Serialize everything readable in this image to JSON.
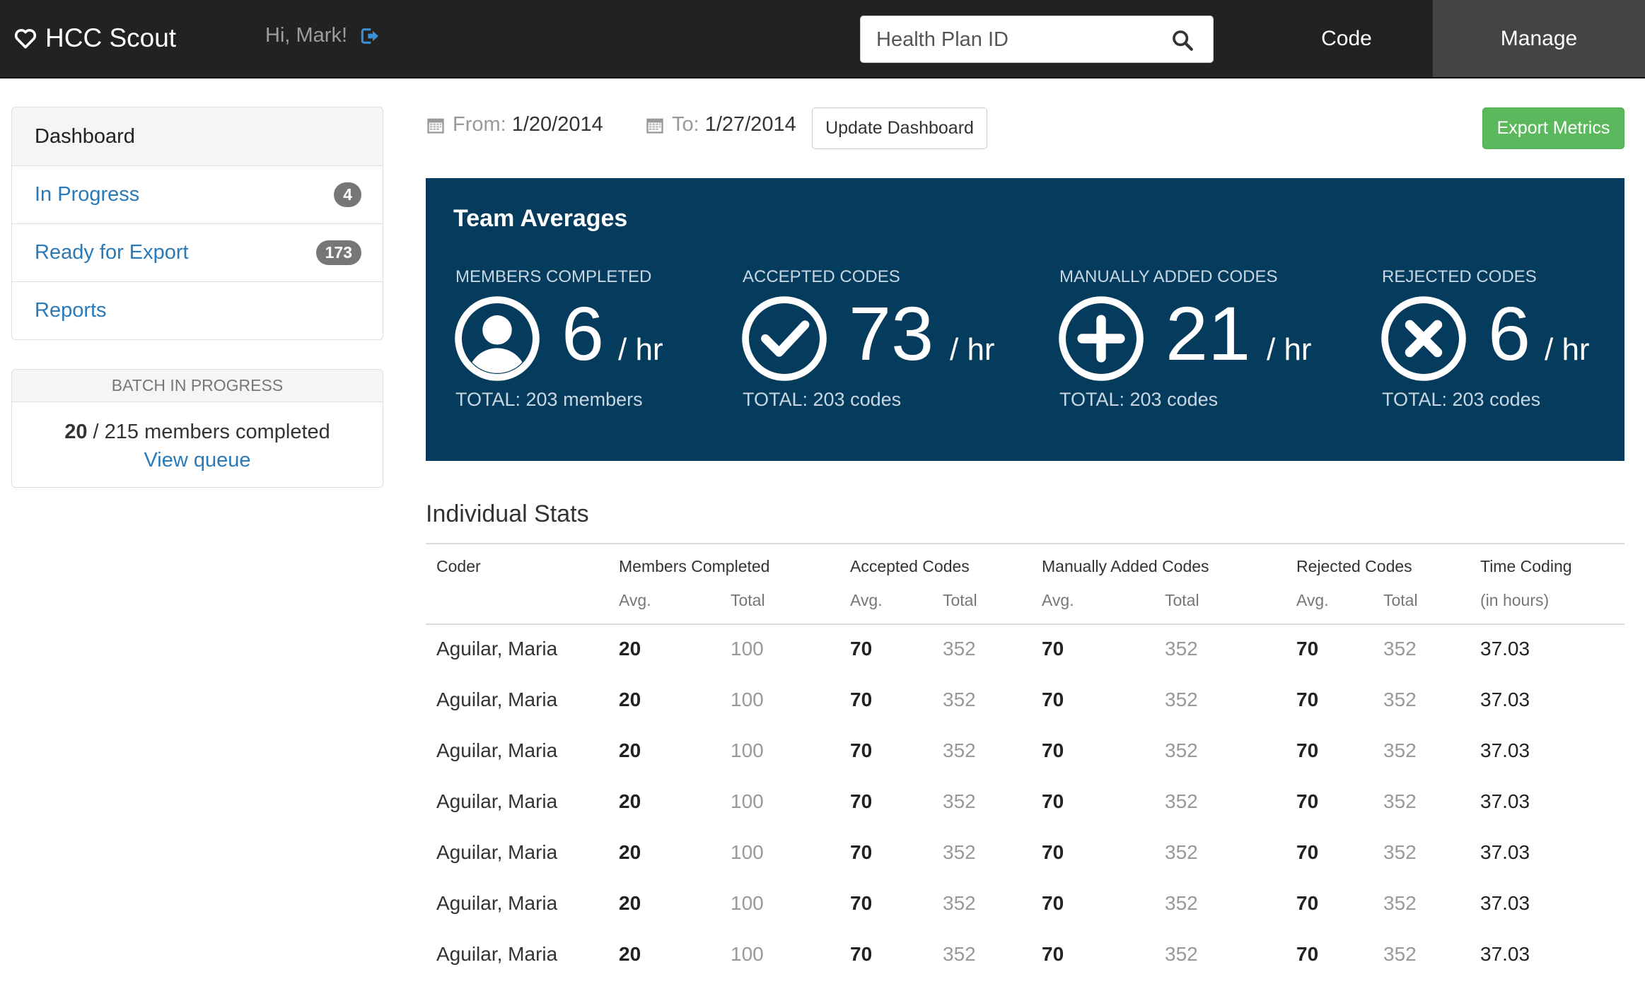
{
  "navbar": {
    "brand": "HCC Scout",
    "greeting": "Hi, Mark!",
    "search_placeholder": "Health Plan ID",
    "nav_code": "Code",
    "nav_manage": "Manage"
  },
  "sidebar": {
    "items": [
      {
        "label": "Dashboard",
        "badge": ""
      },
      {
        "label": "In Progress",
        "badge": "4"
      },
      {
        "label": "Ready for Export",
        "badge": "173"
      },
      {
        "label": "Reports",
        "badge": ""
      }
    ],
    "batch": {
      "heading": "BATCH IN PROGRESS",
      "completed": "20",
      "rest": " / 215 members completed",
      "link": "View queue"
    }
  },
  "toolbar": {
    "from_label": "From:",
    "from_value": "1/20/2014",
    "to_label": "To:",
    "to_value": "1/27/2014",
    "update_label": "Update Dashboard",
    "export_label": "Export Metrics"
  },
  "team": {
    "title": "Team Averages",
    "metrics": [
      {
        "label": "MEMBERS COMPLETED",
        "value": "6",
        "unit": "/ hr",
        "total": "TOTAL: 203 members",
        "icon": "user-circle-icon"
      },
      {
        "label": "ACCEPTED CODES",
        "value": "73",
        "unit": "/ hr",
        "total": "TOTAL: 203 codes",
        "icon": "check-circle-icon"
      },
      {
        "label": "MANUALLY ADDED CODES",
        "value": "21",
        "unit": "/ hr",
        "total": "TOTAL: 203 codes",
        "icon": "plus-circle-icon"
      },
      {
        "label": "REJECTED CODES",
        "value": "6",
        "unit": "/ hr",
        "total": "TOTAL: 203 codes",
        "icon": "x-circle-icon"
      }
    ]
  },
  "stats": {
    "title": "Individual Stats",
    "columns": {
      "coder": "Coder",
      "members": "Members Completed",
      "accepted": "Accepted Codes",
      "manual": "Manually Added Codes",
      "rejected": "Rejected Codes",
      "time": "Time Coding",
      "avg": "Avg.",
      "total": "Total",
      "time_sub": "(in hours)"
    },
    "rows": [
      {
        "name": "Aguilar, Maria",
        "m_avg": "20",
        "m_total": "100",
        "a_avg": "70",
        "a_total": "352",
        "ma_avg": "70",
        "ma_total": "352",
        "r_avg": "70",
        "r_total": "352",
        "time": "37.03"
      },
      {
        "name": "Aguilar, Maria",
        "m_avg": "20",
        "m_total": "100",
        "a_avg": "70",
        "a_total": "352",
        "ma_avg": "70",
        "ma_total": "352",
        "r_avg": "70",
        "r_total": "352",
        "time": "37.03"
      },
      {
        "name": "Aguilar, Maria",
        "m_avg": "20",
        "m_total": "100",
        "a_avg": "70",
        "a_total": "352",
        "ma_avg": "70",
        "ma_total": "352",
        "r_avg": "70",
        "r_total": "352",
        "time": "37.03"
      },
      {
        "name": "Aguilar, Maria",
        "m_avg": "20",
        "m_total": "100",
        "a_avg": "70",
        "a_total": "352",
        "ma_avg": "70",
        "ma_total": "352",
        "r_avg": "70",
        "r_total": "352",
        "time": "37.03"
      },
      {
        "name": "Aguilar, Maria",
        "m_avg": "20",
        "m_total": "100",
        "a_avg": "70",
        "a_total": "352",
        "ma_avg": "70",
        "ma_total": "352",
        "r_avg": "70",
        "r_total": "352",
        "time": "37.03"
      },
      {
        "name": "Aguilar, Maria",
        "m_avg": "20",
        "m_total": "100",
        "a_avg": "70",
        "a_total": "352",
        "ma_avg": "70",
        "ma_total": "352",
        "r_avg": "70",
        "r_total": "352",
        "time": "37.03"
      },
      {
        "name": "Aguilar, Maria",
        "m_avg": "20",
        "m_total": "100",
        "a_avg": "70",
        "a_total": "352",
        "ma_avg": "70",
        "ma_total": "352",
        "r_avg": "70",
        "r_total": "352",
        "time": "37.03"
      }
    ]
  }
}
